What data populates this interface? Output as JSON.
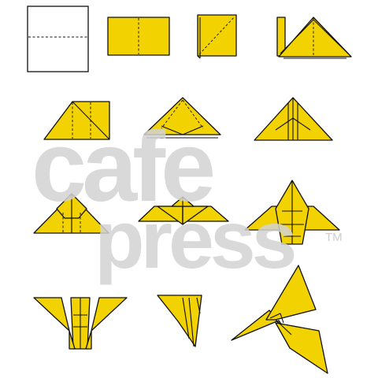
{
  "diagram": {
    "colors": {
      "paper": "#f2d200",
      "outline": "#111111",
      "background": "#ffffff"
    },
    "steps": [
      {
        "id": 1,
        "shape": "blank-square-with-fold"
      },
      {
        "id": 2,
        "shape": "folded-rectangle"
      },
      {
        "id": 3,
        "shape": "square-diagonal-fold"
      },
      {
        "id": 4,
        "shape": "triangle-layers"
      },
      {
        "id": 5,
        "shape": "right-triangle"
      },
      {
        "id": 6,
        "shape": "triangle-layered"
      },
      {
        "id": 7,
        "shape": "triangle-center-pleats"
      },
      {
        "id": 8,
        "shape": "triangle-raised-flaps"
      },
      {
        "id": 9,
        "shape": "flat-wings"
      },
      {
        "id": 10,
        "shape": "body-with-flaps"
      },
      {
        "id": 11,
        "shape": "butterfly-front"
      },
      {
        "id": 12,
        "shape": "butterfly-side"
      },
      {
        "id": 13,
        "shape": "finished-butterfly"
      }
    ]
  },
  "watermark": {
    "line1": "cafe",
    "line2": "press",
    "trademark": "TM"
  }
}
